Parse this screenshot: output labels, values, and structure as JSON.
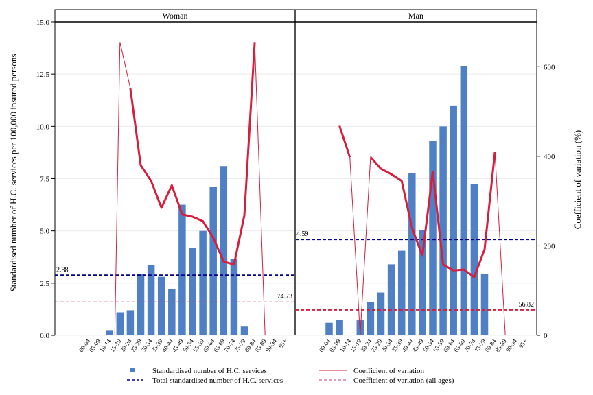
{
  "chart_data": {
    "type": "bar",
    "ylabel": "Standardised number of H.C. services per 100,000 insured persons",
    "y2label": "Coefficient of variation (%)",
    "ylim": [
      0,
      15
    ],
    "y2lim": [
      0,
      700
    ],
    "yticks": [
      "0.0",
      "2.5",
      "5.0",
      "7.5",
      "10.0",
      "12.5",
      "15.0"
    ],
    "y2ticks": [
      "0",
      "200",
      "400",
      "600"
    ],
    "categories": [
      "00-04",
      "05-09",
      "10-14",
      "15-19",
      "20-24",
      "25-29",
      "30-34",
      "35-39",
      "40-44",
      "45-49",
      "50-54",
      "55-59",
      "60-64",
      "65-69",
      "70-74",
      "75-79",
      "80-84",
      "85-89",
      "90-94",
      "95+"
    ],
    "colors": {
      "bars": "#4f7fc4",
      "total_line": "#00008b",
      "cv_line": "#d61f3c",
      "cv_all_line": "#c0427a",
      "annotation_red": "#b0103a"
    },
    "panels": [
      {
        "name": "Woman",
        "bars": [
          0,
          0,
          0.25,
          1.1,
          1.2,
          2.95,
          3.35,
          2.8,
          2.2,
          6.25,
          4.2,
          5.0,
          7.1,
          8.1,
          3.65,
          0.42,
          0,
          0,
          0,
          0
        ],
        "total": 2.88,
        "total_label": "2.88",
        "cv_all": 74.73,
        "cv_all_label": "74.73",
        "cv_thin": [
          [
            2.5,
            0
          ],
          [
            3,
            655
          ],
          [
            4,
            552
          ],
          [
            5,
            380
          ],
          [
            6,
            345
          ],
          [
            7,
            285
          ],
          [
            8,
            335
          ],
          [
            9,
            270
          ],
          [
            10,
            265
          ],
          [
            11,
            255
          ],
          [
            12,
            218
          ],
          [
            13,
            165
          ],
          [
            14,
            158
          ],
          [
            15,
            268
          ],
          [
            16,
            655
          ],
          [
            17,
            0
          ]
        ],
        "cv_thick": [
          [
            4,
            552
          ],
          [
            5,
            380
          ],
          [
            6,
            345
          ],
          [
            7,
            285
          ],
          [
            8,
            335
          ],
          [
            9,
            270
          ],
          [
            10,
            265
          ],
          [
            11,
            255
          ],
          [
            12,
            218
          ],
          [
            13,
            165
          ],
          [
            14,
            158
          ],
          [
            15,
            268
          ],
          [
            16,
            655
          ]
        ]
      },
      {
        "name": "Man",
        "bars": [
          0.6,
          0.75,
          0,
          0.72,
          1.6,
          2.05,
          3.4,
          4.05,
          7.75,
          5.05,
          9.3,
          10.0,
          11.0,
          12.9,
          7.25,
          2.95,
          0,
          0,
          0,
          0
        ],
        "total": 4.59,
        "total_label": "4.59",
        "cv_all": 56.82,
        "cv_all_label": "56.82",
        "cv_thin": [
          [
            1,
            468
          ],
          [
            2,
            398
          ],
          [
            3,
            0
          ],
          [
            4,
            398
          ],
          [
            5,
            372
          ],
          [
            6,
            360
          ],
          [
            7,
            345
          ],
          [
            8,
            240
          ],
          [
            9,
            178
          ],
          [
            10,
            365
          ],
          [
            11,
            158
          ],
          [
            12,
            145
          ],
          [
            13,
            147
          ],
          [
            14,
            130
          ],
          [
            15,
            192
          ],
          [
            16,
            410
          ],
          [
            17,
            0
          ]
        ],
        "cv_thick": [
          [
            1,
            468
          ],
          [
            2,
            398
          ],
          [
            4,
            398
          ],
          [
            5,
            372
          ],
          [
            6,
            360
          ],
          [
            7,
            345
          ],
          [
            8,
            240
          ],
          [
            9,
            178
          ],
          [
            10,
            365
          ],
          [
            11,
            158
          ],
          [
            12,
            145
          ],
          [
            13,
            147
          ],
          [
            14,
            130
          ],
          [
            15,
            192
          ],
          [
            16,
            410
          ]
        ]
      }
    ],
    "legend": [
      {
        "key": "bars",
        "label": "Standardised number of H.C. services"
      },
      {
        "key": "cv",
        "label": "Coefficient of variation"
      },
      {
        "key": "total",
        "label": "Total standardised number of H.C. services"
      },
      {
        "key": "cv_all",
        "label": "Coefficient of variation (all ages)"
      }
    ]
  }
}
